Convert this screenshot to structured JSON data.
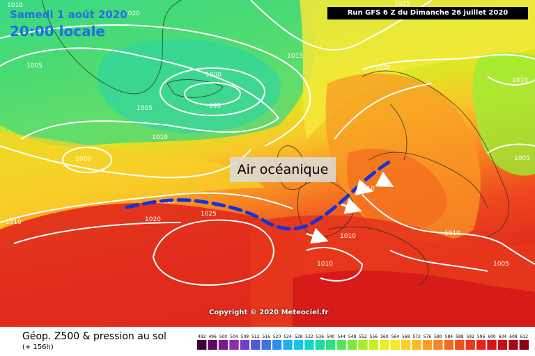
{
  "header": {
    "date": "Samedi 1 août 2020",
    "local_time": "20:00 locale",
    "run_info": "Run GFS 6 Z du Dimanche 26 juillet 2020"
  },
  "annotation": {
    "air_mass": "Air océanique"
  },
  "copyright": "Copyright © 2020 Meteociel.fr",
  "footer": {
    "title": "Géop. Z500 & pression au sol",
    "subtitle": "(+ 156h)"
  },
  "isobar_labels": [
    "1010",
    "1020",
    "1005",
    "1000",
    "995",
    "1005",
    "1015",
    "1020",
    "1025",
    "1010",
    "1000",
    "1010",
    "1005",
    "1010",
    "1015",
    "1020",
    "1025",
    "1010",
    "1010",
    "1010",
    "1010",
    "1005"
  ],
  "legend": {
    "values": [
      "492",
      "496",
      "500",
      "504",
      "508",
      "512",
      "516",
      "520",
      "524",
      "528",
      "532",
      "536",
      "540",
      "544",
      "548",
      "552",
      "556",
      "560",
      "564",
      "568",
      "572",
      "576",
      "580",
      "584",
      "588",
      "592",
      "596",
      "600",
      "604",
      "608",
      "612"
    ],
    "colors": [
      "#3d0038",
      "#5a0a60",
      "#7a1a8c",
      "#8e2cb0",
      "#7040c8",
      "#4f5ad8",
      "#3a74e6",
      "#2e90ee",
      "#20aef0",
      "#14c6e4",
      "#10d6c8",
      "#18dea4",
      "#30e27e",
      "#50e65a",
      "#78ea3c",
      "#a2ee28",
      "#c8f020",
      "#e8f024",
      "#f8e628",
      "#fcd028",
      "#fcb828",
      "#fc9e24",
      "#fa8420",
      "#f66a1c",
      "#f0501c",
      "#ea381c",
      "#e2241c",
      "#da141a",
      "#c80c18",
      "#a80816",
      "#880614"
    ]
  },
  "colors": {
    "header_text": "#1f6fe0",
    "front_line": "#1533d6",
    "isobar": "#ffffff",
    "flow_arrow": "#ffffff"
  }
}
